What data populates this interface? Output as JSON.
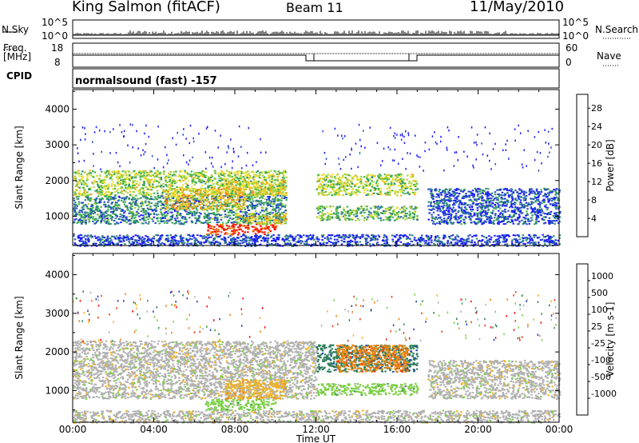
{
  "header": {
    "station": "King Salmon (fitACF)",
    "beam": "Beam 11",
    "date": "11/May/2010"
  },
  "top_panels": {
    "nsky_label": "N.Sky",
    "nsky_scale_top": "10^5",
    "nsky_scale_bottom": "10^0",
    "nsearch_label": "N.Search",
    "freq_label_1": "Freq.",
    "freq_label_2": "[MHz]",
    "freq_top": "18",
    "freq_bottom": "8",
    "nave_top": "60",
    "nave_bottom": "0",
    "nave_label": "Nave",
    "cpid_label": "CPID",
    "cpid_text": "normalsound (fast) -157"
  },
  "chart_data": [
    {
      "type": "heatmap",
      "title": "",
      "xlabel": "Time UT",
      "ylabel": "Slant Range [km]",
      "x_ticks": [
        "00:00",
        "04:00",
        "08:00",
        "12:00",
        "16:00",
        "20:00",
        "00:00"
      ],
      "x_range_hours": [
        0,
        24
      ],
      "y_ticks": [
        1000,
        2000,
        3000,
        4000
      ],
      "ylim": [
        180,
        4550
      ],
      "colorbar_label": "Power [dB]",
      "colorbar_ticks": [
        4,
        8,
        12,
        16,
        20,
        24,
        28
      ],
      "colorbar_range": [
        0,
        31
      ],
      "colors": [
        "#1a1aff",
        "#2450c0",
        "#2e8b6e",
        "#3cb24a",
        "#a8d23a",
        "#f0e030",
        "#f0b020",
        "#f07a10",
        "#e83010",
        "#ff0000"
      ],
      "regions": [
        {
          "t0": 0.0,
          "t1": 10.5,
          "r0": 800,
          "r1": 1600,
          "level": 0.25
        },
        {
          "t0": 0.0,
          "t1": 10.5,
          "r0": 1600,
          "r1": 2300,
          "level": 0.45
        },
        {
          "t0": 4.5,
          "t1": 8.5,
          "r0": 1200,
          "r1": 1800,
          "level": 0.6
        },
        {
          "t0": 7.5,
          "t1": 10.5,
          "r0": 1600,
          "r1": 2000,
          "level": 0.55
        },
        {
          "t0": 6.5,
          "t1": 10.0,
          "r0": 500,
          "r1": 800,
          "level": 0.85
        },
        {
          "t0": 8.0,
          "t1": 10.5,
          "r0": 800,
          "r1": 1100,
          "level": 0.55
        },
        {
          "t0": 12.0,
          "t1": 17.0,
          "r0": 1600,
          "r1": 2200,
          "level": 0.45
        },
        {
          "t0": 12.0,
          "t1": 17.0,
          "r0": 900,
          "r1": 1300,
          "level": 0.35
        },
        {
          "t0": 17.5,
          "t1": 24.0,
          "r0": 800,
          "r1": 1800,
          "level": 0.15
        },
        {
          "t0": 0.0,
          "t1": 24.0,
          "r0": 180,
          "r1": 500,
          "level": 0.1
        }
      ]
    },
    {
      "type": "heatmap",
      "title": "",
      "xlabel": "Time UT",
      "ylabel": "Slant Range [km]",
      "x_ticks": [
        "00:00",
        "04:00",
        "08:00",
        "12:00",
        "16:00",
        "20:00",
        "00:00"
      ],
      "x_range_hours": [
        0,
        24
      ],
      "y_ticks": [
        1000,
        2000,
        3000,
        4000
      ],
      "ylim": [
        180,
        4550
      ],
      "colorbar_label": "Velocity [m s-1]",
      "colorbar_ticks": [
        1000,
        500,
        100,
        25,
        -25,
        -100,
        -500,
        -1000
      ],
      "colors": [
        "#2040c0",
        "#2a7a5a",
        "#3a9a4a",
        "#7ad040",
        "#b0b0b0",
        "#f0b020",
        "#f08010",
        "#e84010",
        "#ff0000"
      ],
      "regions": [
        {
          "t0": 0.0,
          "t1": 12.0,
          "r0": 800,
          "r1": 2300,
          "level": 4
        },
        {
          "t0": 6.5,
          "t1": 10.0,
          "r0": 500,
          "r1": 800,
          "level": 3
        },
        {
          "t0": 7.5,
          "t1": 10.5,
          "r0": 800,
          "r1": 1300,
          "level": 5
        },
        {
          "t0": 12.0,
          "t1": 17.0,
          "r0": 1500,
          "r1": 2200,
          "level": 1
        },
        {
          "t0": 13.0,
          "t1": 16.5,
          "r0": 1500,
          "r1": 2200,
          "level": 6
        },
        {
          "t0": 12.0,
          "t1": 17.0,
          "r0": 900,
          "r1": 1200,
          "level": 3
        },
        {
          "t0": 17.5,
          "t1": 24.0,
          "r0": 800,
          "r1": 1800,
          "level": 4
        },
        {
          "t0": 0.0,
          "t1": 24.0,
          "r0": 180,
          "r1": 500,
          "level": 4
        }
      ]
    }
  ]
}
